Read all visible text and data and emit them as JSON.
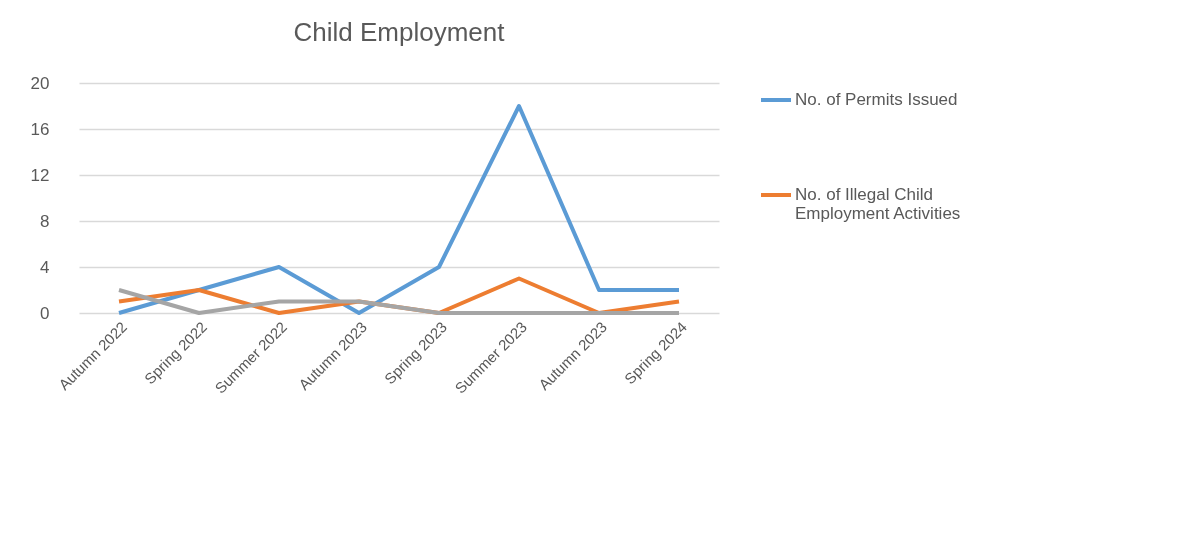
{
  "chart_data": {
    "type": "line",
    "title": "Child Employment",
    "categories": [
      "Autumn 2022",
      "Spring 2022",
      "Summer 2022",
      "Autumn 2023",
      "Spring 2023",
      "Summer  2023",
      "Autumn 2023",
      "Spring 2024"
    ],
    "series": [
      {
        "name": "No. of Permits Issued",
        "color": "#5b9bd5",
        "values": [
          0,
          2,
          4,
          0,
          4,
          18,
          2,
          2
        ]
      },
      {
        "name": "No. of Illegal Child Employment Activities",
        "color": "#ed7d31",
        "values": [
          1,
          2,
          0,
          1,
          0,
          3,
          0,
          1
        ]
      },
      {
        "color": "#a5a5a5",
        "values": [
          2,
          0,
          1,
          1,
          0,
          0,
          0,
          0
        ]
      }
    ],
    "ylim": [
      0,
      20
    ],
    "yticks": [
      0,
      4,
      8,
      12,
      16,
      20
    ],
    "grid": "y",
    "legend": "right",
    "marker": "none",
    "line_style": "solid"
  }
}
